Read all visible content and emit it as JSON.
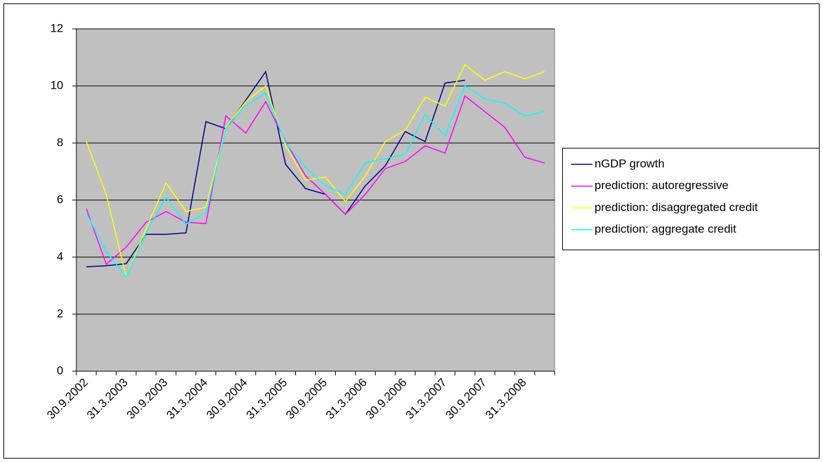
{
  "chart_data": {
    "type": "line",
    "categories": [
      "30.9.2002",
      null,
      "31.3.2003",
      null,
      "30.9.2003",
      null,
      "31.3.2004",
      null,
      "30.9.2004",
      null,
      "31.3.2005",
      null,
      "30.9.2005",
      null,
      "31.3.2006",
      null,
      "30.9.2006",
      null,
      "31.3.2007",
      null,
      "30.9.2007",
      null,
      "31.3.2008",
      null
    ],
    "series": [
      {
        "name": "nGDP growth",
        "color": "#000080",
        "values": [
          3.66,
          3.7,
          3.77,
          4.8,
          4.8,
          4.85,
          8.75,
          8.5,
          9.5,
          10.5,
          7.25,
          6.4,
          6.2,
          5.5,
          6.5,
          7.2,
          8.4,
          8.05,
          10.1,
          10.2,
          null,
          null,
          null,
          null
        ]
      },
      {
        "name": "prediction: autoregressive",
        "color": "#ff00ff",
        "values": [
          5.7,
          3.75,
          4.35,
          5.22,
          5.6,
          5.22,
          5.18,
          8.95,
          8.35,
          9.45,
          8.05,
          6.85,
          6.2,
          5.5,
          6.2,
          7.1,
          7.35,
          7.9,
          7.65,
          9.65,
          9.1,
          8.55,
          7.5,
          7.3
        ]
      },
      {
        "name": "prediction: disaggregated credit",
        "color": "#ffff00",
        "values": [
          8.05,
          6.2,
          3.3,
          5.0,
          6.6,
          5.6,
          5.75,
          8.55,
          9.45,
          10.0,
          7.9,
          6.7,
          6.8,
          5.95,
          6.85,
          8.05,
          8.45,
          9.6,
          9.3,
          10.75,
          10.2,
          10.5,
          10.25,
          10.5
        ]
      },
      {
        "name": "prediction: aggregate credit",
        "color": "#00ffff",
        "values": [
          5.55,
          4.2,
          3.3,
          4.85,
          6.1,
          5.15,
          5.55,
          8.5,
          9.3,
          9.75,
          8.0,
          7.15,
          6.5,
          6.2,
          7.3,
          7.45,
          7.6,
          9.0,
          8.25,
          10.0,
          9.55,
          9.4,
          8.95,
          9.1
        ]
      }
    ],
    "ylim": [
      0,
      12
    ],
    "yticks": [
      0,
      2,
      4,
      6,
      8,
      10,
      12
    ],
    "grid": true,
    "legend": "right"
  }
}
